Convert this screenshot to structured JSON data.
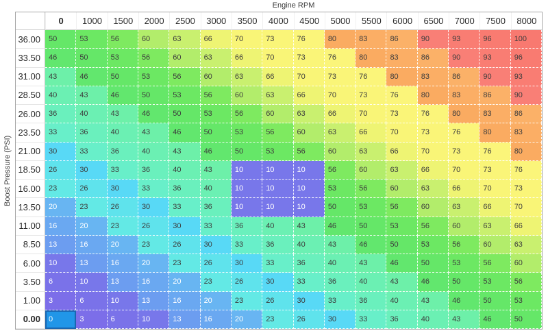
{
  "axis": {
    "x_title": "Engine RPM",
    "y_title": "Boost Pressure (PSI)"
  },
  "table": {
    "column_headers": [
      "0",
      "1000",
      "1500",
      "2000",
      "2500",
      "3000",
      "3500",
      "4000",
      "4500",
      "5000",
      "5500",
      "6000",
      "6500",
      "7000",
      "7500",
      "8000"
    ],
    "row_headers": [
      "36.00",
      "33.50",
      "31.00",
      "28.50",
      "26.00",
      "23.50",
      "21.00",
      "18.50",
      "16.00",
      "13.50",
      "11.00",
      "8.50",
      "6.00",
      "3.50",
      "1.00",
      "0.00"
    ],
    "rows": [
      [
        50,
        53,
        56,
        60,
        63,
        66,
        70,
        73,
        76,
        80,
        83,
        86,
        90,
        93,
        96,
        100
      ],
      [
        46,
        50,
        53,
        56,
        60,
        63,
        66,
        70,
        73,
        76,
        80,
        83,
        86,
        90,
        93,
        96
      ],
      [
        43,
        46,
        50,
        53,
        56,
        60,
        63,
        66,
        70,
        73,
        76,
        80,
        83,
        86,
        90,
        93
      ],
      [
        40,
        43,
        46,
        50,
        53,
        56,
        60,
        63,
        66,
        70,
        73,
        76,
        80,
        83,
        86,
        90
      ],
      [
        36,
        40,
        43,
        46,
        50,
        53,
        56,
        60,
        63,
        66,
        70,
        73,
        76,
        80,
        83,
        86
      ],
      [
        33,
        36,
        40,
        43,
        46,
        50,
        53,
        56,
        60,
        63,
        66,
        70,
        73,
        76,
        80,
        83
      ],
      [
        30,
        33,
        36,
        40,
        43,
        46,
        50,
        53,
        56,
        60,
        63,
        66,
        70,
        73,
        76,
        80
      ],
      [
        26,
        30,
        33,
        36,
        40,
        43,
        10,
        10,
        10,
        56,
        60,
        63,
        66,
        70,
        73,
        76
      ],
      [
        23,
        26,
        30,
        33,
        36,
        40,
        10,
        10,
        10,
        53,
        56,
        60,
        63,
        66,
        70,
        73
      ],
      [
        20,
        23,
        26,
        30,
        33,
        36,
        10,
        10,
        10,
        50,
        53,
        56,
        60,
        63,
        66,
        70
      ],
      [
        16,
        20,
        23,
        26,
        30,
        33,
        36,
        40,
        43,
        46,
        50,
        53,
        56,
        60,
        63,
        66
      ],
      [
        13,
        16,
        20,
        23,
        26,
        30,
        33,
        36,
        40,
        43,
        46,
        50,
        53,
        56,
        60,
        63
      ],
      [
        10,
        13,
        16,
        20,
        23,
        26,
        30,
        33,
        36,
        40,
        43,
        46,
        50,
        53,
        56,
        60
      ],
      [
        6,
        10,
        13,
        16,
        20,
        23,
        26,
        30,
        33,
        36,
        40,
        43,
        46,
        50,
        53,
        56
      ],
      [
        3,
        6,
        10,
        13,
        16,
        20,
        23,
        26,
        30,
        33,
        36,
        40,
        43,
        46,
        50,
        53
      ],
      [
        0,
        3,
        6,
        10,
        13,
        16,
        20,
        23,
        26,
        30,
        33,
        36,
        40,
        43,
        46,
        50
      ]
    ],
    "selected": {
      "row": 15,
      "col": 0
    },
    "white_text_threshold": 20,
    "cell_text_color_dark": "#3d3d3d",
    "cell_text_color_light": "#ffffff",
    "selected_cell_color": "#2196e8",
    "selected_cell_border": "#1a66b0",
    "colors": {
      "0": "#2f7de9",
      "3": "#7c6ee9",
      "6": "#7a72e9",
      "10": "#7877ea",
      "13": "#6c9df0",
      "16": "#6aa8f1",
      "20": "#68b5f2",
      "23": "#63e9e5",
      "26": "#5fe3ec",
      "30": "#58d9f6",
      "33": "#68efc9",
      "36": "#6af0bd",
      "40": "#6bf0b3",
      "43": "#6df0a9",
      "46": "#62e76e",
      "50": "#65e768",
      "53": "#6ce863",
      "56": "#7eea60",
      "60": "#b2ed6b",
      "63": "#c9f06f",
      "66": "#eef473",
      "70": "#f9f577",
      "73": "#faf578",
      "76": "#fbf57a",
      "80": "#faab61",
      "83": "#fbae65",
      "86": "#fbb168",
      "90": "#f97f76",
      "93": "#f97d73",
      "96": "#f97b71",
      "100": "#f87970"
    }
  }
}
